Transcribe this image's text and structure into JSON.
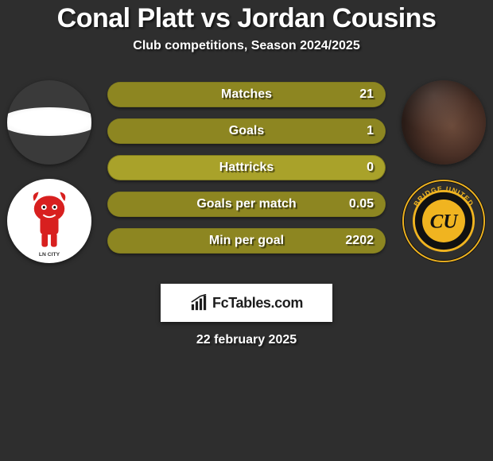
{
  "background_color": "#2e2e2e",
  "text_color": "#ffffff",
  "title": "Conal Platt vs Jordan Cousins",
  "subtitle": "Club competitions, Season 2024/2025",
  "pill_base_color": "#a9a22a",
  "pill_fill_color": "#8d8621",
  "left": {
    "player_name": "Conal Platt",
    "club_name": "Lincoln City",
    "badge_primary": "#d8201f",
    "badge_secondary": "#ffffff"
  },
  "right": {
    "player_name": "Jordan Cousins",
    "club_name": "Cambridge United",
    "badge_primary": "#f0b420",
    "badge_secondary": "#111111",
    "badge_letters": "CU"
  },
  "stats": [
    {
      "label": "Matches",
      "left_value": "",
      "right_value": "21",
      "left_pct": 0,
      "right_pct": 100
    },
    {
      "label": "Goals",
      "left_value": "",
      "right_value": "1",
      "left_pct": 0,
      "right_pct": 100
    },
    {
      "label": "Hattricks",
      "left_value": "",
      "right_value": "0",
      "left_pct": 0,
      "right_pct": 0
    },
    {
      "label": "Goals per match",
      "left_value": "",
      "right_value": "0.05",
      "left_pct": 0,
      "right_pct": 100
    },
    {
      "label": "Min per goal",
      "left_value": "",
      "right_value": "2202",
      "left_pct": 0,
      "right_pct": 100
    }
  ],
  "brand": "FcTables.com",
  "date": "22 february 2025"
}
